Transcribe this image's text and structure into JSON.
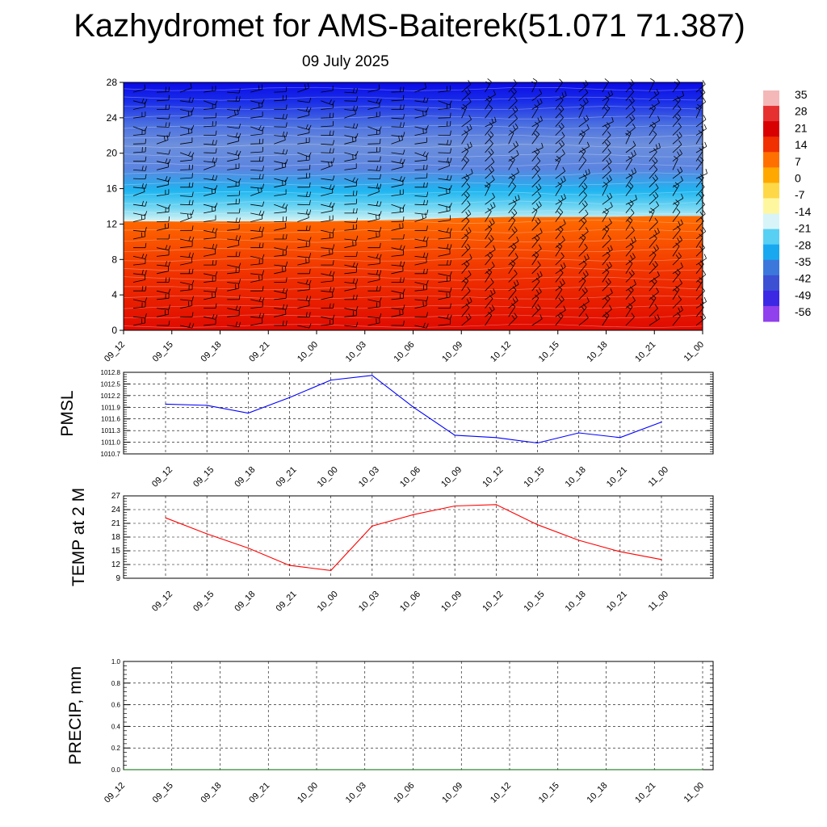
{
  "title": "Kazhydromet for AMS-Baiterek(51.071 71.387)",
  "subtitle": "09 July 2025",
  "colorbar": {
    "labels": [
      "35",
      "28",
      "21",
      "14",
      "7",
      "0",
      "-7",
      "-14",
      "-21",
      "-28",
      "-35",
      "-42",
      "-49",
      "-56"
    ],
    "colors": [
      "#f4b8b8",
      "#e63030",
      "#d80000",
      "#f03000",
      "#ff7000",
      "#ffa800",
      "#ffd848",
      "#fff7a0",
      "#d8f4f8",
      "#58d0f4",
      "#18a8f0",
      "#3c78dc",
      "#3c50d4",
      "#3c28e4",
      "#9040ec"
    ]
  },
  "chart_data": [
    {
      "type": "heatmap",
      "name": "cross-section",
      "x_ticks": [
        "09_12",
        "09_15",
        "09_18",
        "09_21",
        "10_00",
        "10_03",
        "10_06",
        "10_09",
        "10_12",
        "10_15",
        "10_18",
        "10_21",
        "11_00"
      ],
      "y_ticks": [
        "0",
        "4",
        "8",
        "12",
        "16",
        "20",
        "24",
        "28"
      ],
      "ylim": [
        0,
        28
      ],
      "freezing_level_y": [
        12.3,
        12.3,
        12.3,
        12.3,
        12.3,
        12.4,
        12.5,
        12.7,
        12.8,
        12.8,
        12.8,
        12.9,
        12.9
      ],
      "value_range": [
        -56,
        35
      ]
    },
    {
      "type": "line",
      "ylabel": "PMSL",
      "x": [
        "09_12",
        "09_15",
        "09_18",
        "09_21",
        "10_00",
        "10_03",
        "10_06",
        "10_09",
        "10_12",
        "10_15",
        "10_18",
        "10_21",
        "11_00"
      ],
      "y": [
        1011.98,
        1011.95,
        1011.75,
        1012.15,
        1012.6,
        1012.72,
        1011.9,
        1011.18,
        1011.12,
        1010.98,
        1011.24,
        1011.12,
        1011.52
      ],
      "ylim": [
        1010.7,
        1012.8
      ],
      "y_ticks": [
        "1010.7",
        "1011.0",
        "1011.3",
        "1011.6",
        "1011.9",
        "1012.2",
        "1012.5",
        "1012.8"
      ],
      "line_color": "#0000ff"
    },
    {
      "type": "line",
      "ylabel": "TEMP at 2 M",
      "x": [
        "09_12",
        "09_15",
        "09_18",
        "09_21",
        "10_00",
        "10_03",
        "10_06",
        "10_09",
        "10_12",
        "10_15",
        "10_18",
        "10_21",
        "11_00"
      ],
      "y": [
        22.2,
        18.7,
        15.6,
        11.8,
        10.7,
        20.4,
        22.9,
        24.8,
        25.1,
        20.7,
        17.3,
        14.8,
        13.1
      ],
      "ylim": [
        9,
        27
      ],
      "y_ticks": [
        "9",
        "12",
        "15",
        "18",
        "21",
        "24",
        "27"
      ],
      "line_color": "#ff0000"
    },
    {
      "type": "line",
      "ylabel": "PRECIP, mm",
      "x": [
        "09_12",
        "09_15",
        "09_18",
        "09_21",
        "10_00",
        "10_03",
        "10_06",
        "10_09",
        "10_12",
        "10_15",
        "10_18",
        "10_21",
        "11_00"
      ],
      "y": [
        0,
        0,
        0,
        0,
        0,
        0,
        0,
        0,
        0,
        0,
        0,
        0,
        0
      ],
      "ylim": [
        0,
        1
      ],
      "y_ticks": [
        "0.0",
        "0.2",
        "0.4",
        "0.6",
        "0.8",
        "1.0"
      ],
      "line_color": "#006400"
    }
  ]
}
